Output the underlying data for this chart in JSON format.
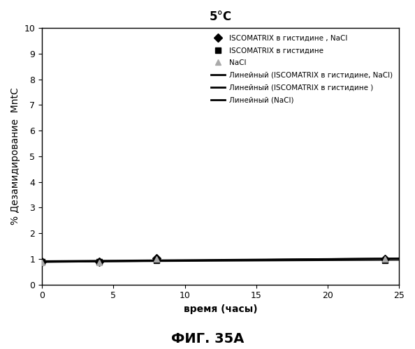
{
  "title": "5°C",
  "xlabel": "время (часы)",
  "ylabel": "% Дезамидирование  MntC",
  "xlim": [
    0,
    25
  ],
  "ylim": [
    0,
    10
  ],
  "xticks": [
    0,
    5,
    10,
    15,
    20,
    25
  ],
  "yticks": [
    0,
    1,
    2,
    3,
    4,
    5,
    6,
    7,
    8,
    9,
    10
  ],
  "caption": "ФИГ. 35A",
  "series": [
    {
      "label": "ISCOMATRIX в гистидине , NaCl",
      "x": [
        0,
        4,
        8,
        24
      ],
      "y": [
        0.9,
        0.9,
        1.02,
        1.0
      ],
      "color": "#000000",
      "marker": "D",
      "markersize": 6,
      "linewidth": 1.5
    },
    {
      "label": "ISCOMATRIX в гистидине",
      "x": [
        0,
        4,
        8,
        24
      ],
      "y": [
        0.88,
        0.88,
        0.95,
        0.95
      ],
      "color": "#000000",
      "marker": "s",
      "markersize": 6,
      "linewidth": 1.5
    },
    {
      "label": "NaCl",
      "x": [
        0,
        4,
        8,
        24
      ],
      "y": [
        0.85,
        0.87,
        1.0,
        1.0
      ],
      "color": "#aaaaaa",
      "marker": "^",
      "markersize": 6,
      "linewidth": 1.5
    }
  ],
  "trend_labels": [
    "Линейный (ISCOMATRIX в гистидине, NaCl)",
    "Линейный (ISCOMATRIX в гистидине )",
    "Линейный (NaCl)"
  ],
  "background_color": "#ffffff",
  "plot_bg_color": "#ffffff"
}
